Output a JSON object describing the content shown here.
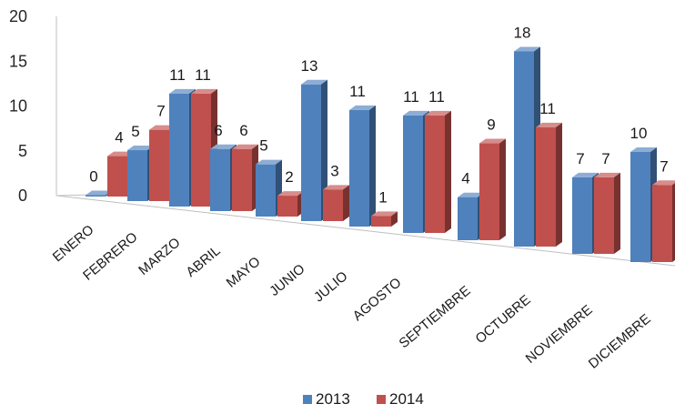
{
  "chart_data": {
    "type": "bar",
    "categories": [
      "ENERO",
      "FEBRERO",
      "MARZO",
      "ABRIL",
      "MAYO",
      "JUNIO",
      "JULIO",
      "AGOSTO",
      "SEPTIEMBRE",
      "OCTUBRE",
      "NOVIEMBRE",
      "DICIEMBRE"
    ],
    "series": [
      {
        "name": "2013",
        "values": [
          0,
          5,
          11,
          6,
          5,
          13,
          11,
          11,
          4,
          18,
          7,
          10
        ],
        "color": "#4F81BD"
      },
      {
        "name": "2014",
        "values": [
          4,
          7,
          11,
          6,
          2,
          3,
          1,
          11,
          9,
          11,
          7,
          7
        ],
        "color": "#C0504D"
      }
    ],
    "yticks": [
      "0",
      "5",
      "10",
      "15",
      "20"
    ],
    "ylim": [
      0,
      20
    ],
    "style": "3d-clustered-column",
    "data_labels": true,
    "legend_position": "bottom"
  }
}
